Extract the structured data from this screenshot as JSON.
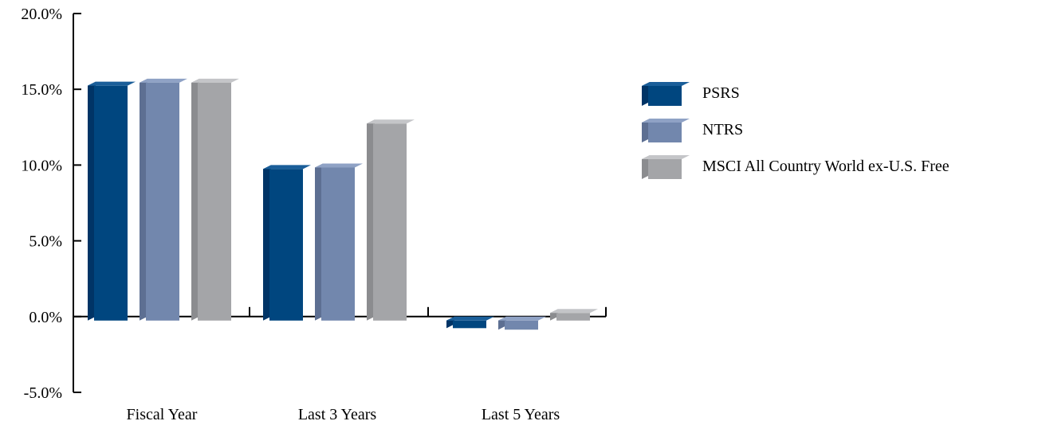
{
  "chart_data": {
    "type": "bar",
    "categories": [
      "Fiscal Year",
      "Last 3 Years",
      "Last 5 Years"
    ],
    "series": [
      {
        "name": "PSRS",
        "values": [
          15.5,
          10.0,
          -0.5
        ]
      },
      {
        "name": "NTRS",
        "values": [
          15.7,
          10.1,
          -0.6
        ]
      },
      {
        "name": "MSCI All Country World ex-U.S. Free",
        "values": [
          15.7,
          13.0,
          0.5
        ]
      }
    ],
    "ylim": [
      -5,
      20
    ],
    "yticks": [
      "20.0%",
      "15.0%",
      "10.0%",
      "5.0%",
      "0.0%",
      "-5.0%"
    ],
    "ytick_values": [
      20,
      15,
      10,
      5,
      0,
      -5
    ],
    "legend_position": "right",
    "grid": false
  },
  "colors": {
    "PSRS": {
      "front": "#00467f",
      "side": "#003466",
      "top": "#1a5e99"
    },
    "NTRS": {
      "front": "#7287ad",
      "side": "#5d6f92",
      "top": "#8fa2c5"
    },
    "MSCI": {
      "front": "#a4a5a8",
      "side": "#8b8c8f",
      "top": "#c4c5c8"
    }
  }
}
